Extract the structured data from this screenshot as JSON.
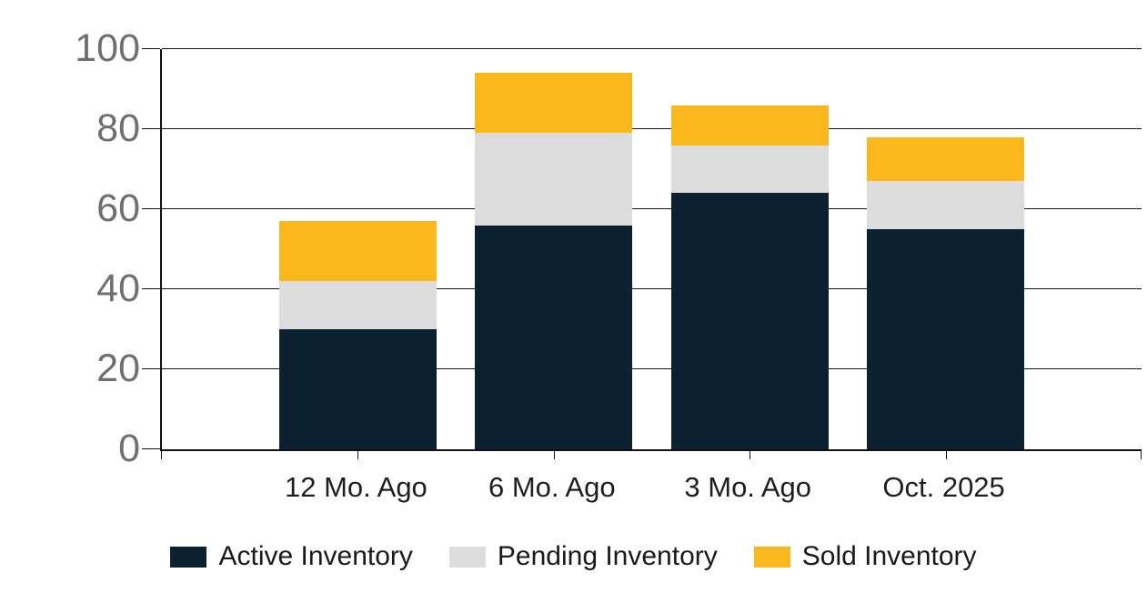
{
  "chart_data": {
    "type": "bar",
    "stacked": true,
    "title": "",
    "categories": [
      "12 Mo. Ago",
      "6 Mo. Ago",
      "3 Mo. Ago",
      "Oct. 2025"
    ],
    "series": [
      {
        "name": "Active Inventory",
        "color": "#0b2130",
        "values": [
          30,
          56,
          64,
          55
        ]
      },
      {
        "name": "Pending Inventory",
        "color": "#dcdcdc",
        "values": [
          12,
          23,
          12,
          12
        ]
      },
      {
        "name": "Sold Inventory",
        "color": "#fbb81c",
        "values": [
          15,
          15,
          10,
          11
        ]
      }
    ],
    "stack_totals": [
      57,
      94,
      86,
      78
    ],
    "xlabel": "",
    "ylabel": "",
    "ylim": [
      0,
      100
    ],
    "yticks": [
      0,
      20,
      40,
      60,
      80,
      100
    ],
    "grid": true,
    "legend_position": "bottom"
  },
  "colors": {
    "background": "#ffffff",
    "gridline": "#151515",
    "axis_line": "#111111",
    "y_tick_label": "#6f6f6f",
    "x_tick_label": "#1e1e1e",
    "legend_text": "#1a1a1a",
    "active_inventory": "#0b2130",
    "pending_inventory": "#dcdcdc",
    "sold_inventory": "#fbb81c"
  },
  "legend": {
    "items": [
      {
        "label": "Active Inventory",
        "color": "#0b2130"
      },
      {
        "label": "Pending Inventory",
        "color": "#dcdcdc"
      },
      {
        "label": "Sold Inventory",
        "color": "#fbb81c"
      }
    ]
  }
}
